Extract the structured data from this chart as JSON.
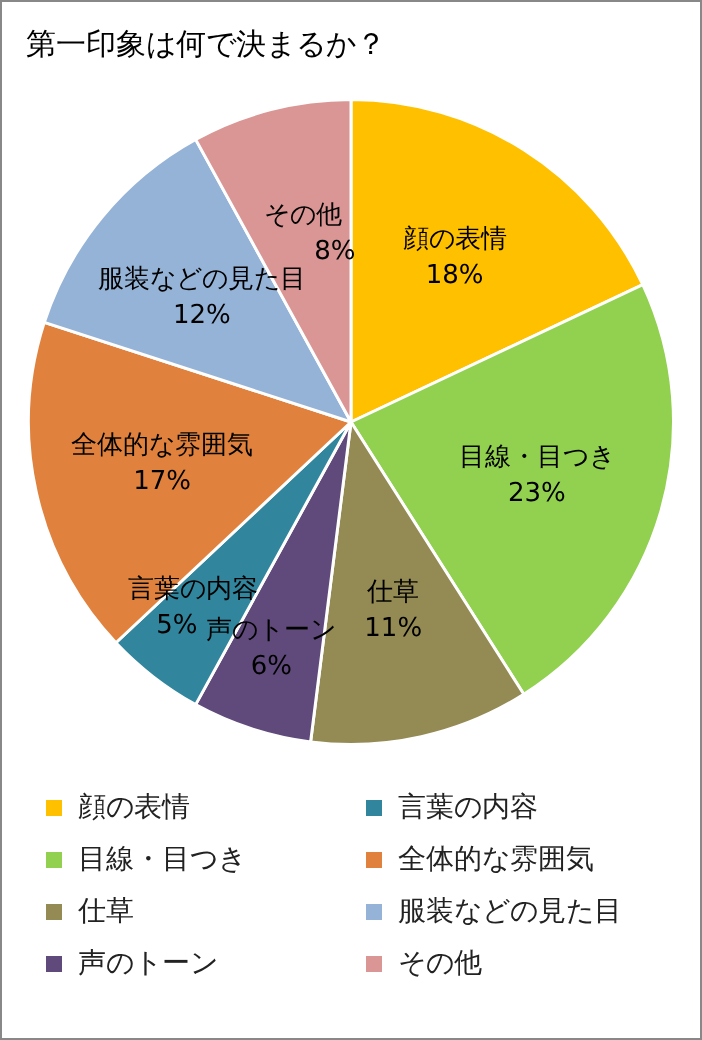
{
  "chart_data": {
    "type": "pie",
    "title": "第一印象は何で決まるか？",
    "categories": [
      "顔の表情",
      "目線・目つき",
      "仕草",
      "声のトーン",
      "言葉の内容",
      "全体的な雰囲気",
      "服装などの見た目",
      "その他"
    ],
    "values": [
      18,
      23,
      11,
      6,
      5,
      17,
      12,
      8
    ],
    "colors": [
      "#ffc000",
      "#92d050",
      "#948a54",
      "#604a7b",
      "#31859c",
      "#e0823d",
      "#95b3d7",
      "#d99694"
    ],
    "value_labels": [
      "18%",
      "23%",
      "11%",
      "6%",
      "5%",
      "17%",
      "12%",
      "8%"
    ],
    "legend": "bottom"
  }
}
